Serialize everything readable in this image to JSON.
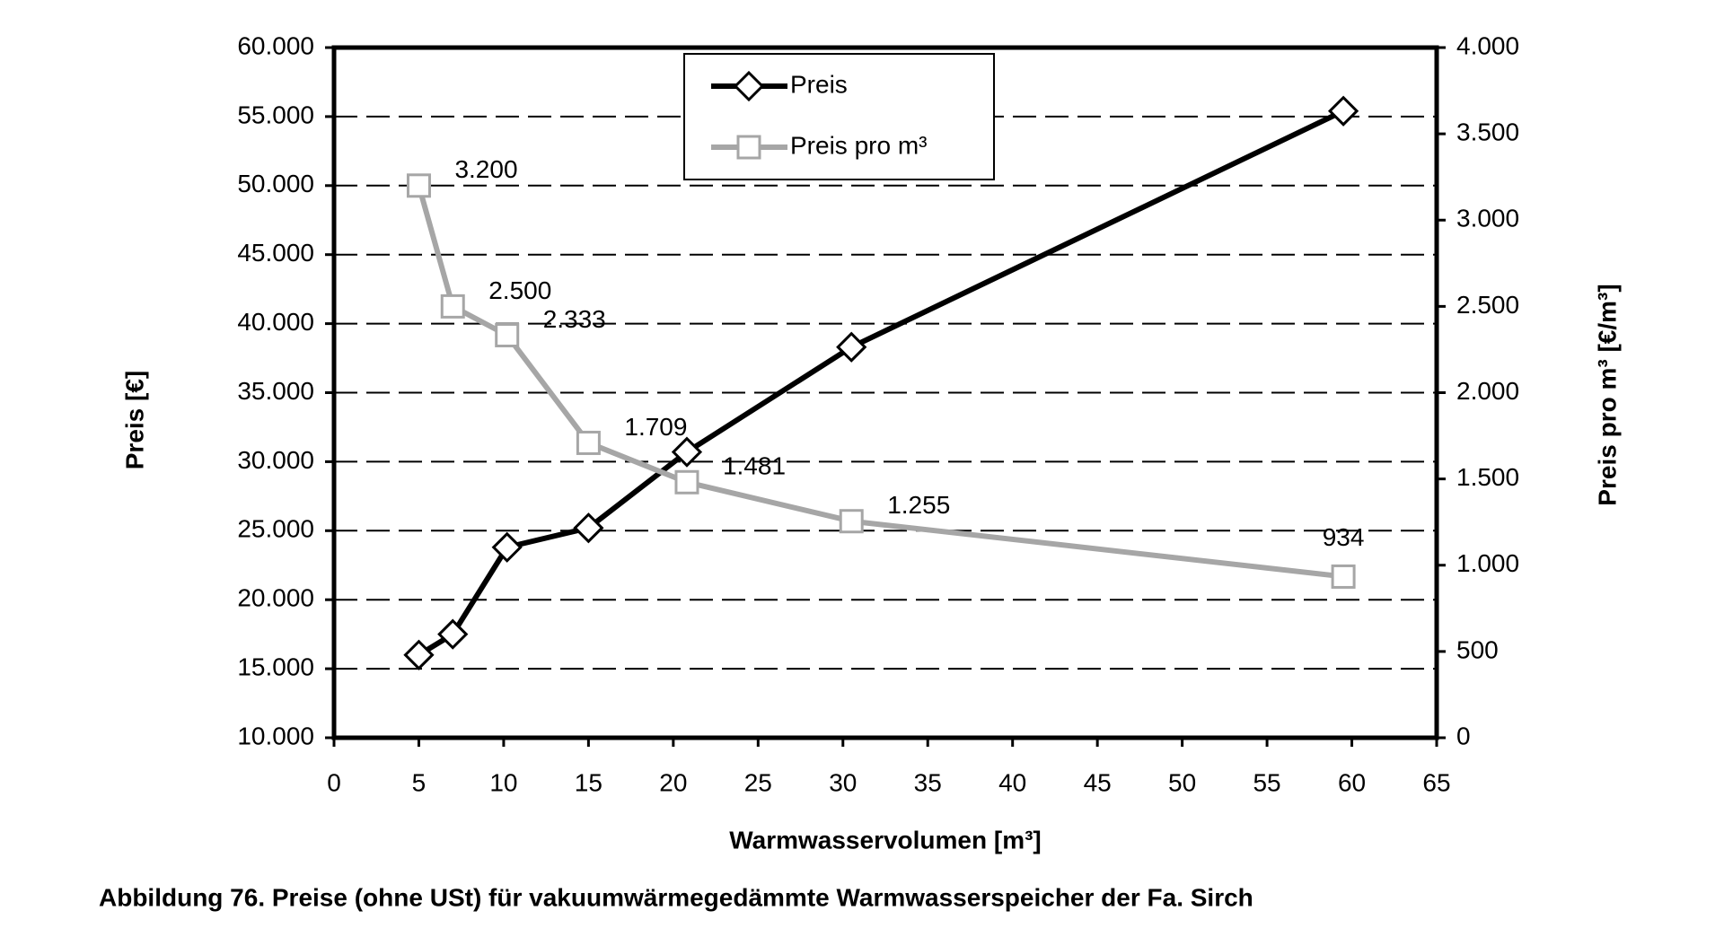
{
  "chart_data": {
    "type": "line",
    "xlabel": "Warmwasservolumen [m³]",
    "ylabel": "Preis [€]",
    "y2label": "Preis pro m³ [€/m³]",
    "caption": "Abbildung 76. Preise (ohne USt) für vakuumwärmegedämmte Warmwasserspeicher der Fa. Sirch",
    "x": [
      5,
      7,
      10.2,
      15,
      20.8,
      30.5,
      59.5
    ],
    "series": [
      {
        "name": "Preis",
        "color": "#000000",
        "marker": "diamond",
        "values": [
          16000,
          17500,
          23800,
          25200,
          30700,
          38300,
          55400
        ]
      },
      {
        "name": "Preis pro m³",
        "color": "#a6a6a6",
        "marker": "square",
        "axis": "y2",
        "values": [
          3200,
          2500,
          2333,
          1709,
          1481,
          1255,
          934
        ],
        "value_labels": [
          "3.200",
          "2.500",
          "2.333",
          "1.709",
          "1.481",
          "1.255",
          "934"
        ]
      }
    ],
    "xlim": [
      0,
      65
    ],
    "xticks": [
      0,
      5,
      10,
      15,
      20,
      25,
      30,
      35,
      40,
      45,
      50,
      55,
      60,
      65
    ],
    "ylim": [
      10000,
      60000
    ],
    "yticks": [
      {
        "value": 10000,
        "label": "10.000"
      },
      {
        "value": 15000,
        "label": "15.000"
      },
      {
        "value": 20000,
        "label": "20.000"
      },
      {
        "value": 25000,
        "label": "25.000"
      },
      {
        "value": 30000,
        "label": "30.000"
      },
      {
        "value": 35000,
        "label": "35.000"
      },
      {
        "value": 40000,
        "label": "40.000"
      },
      {
        "value": 45000,
        "label": "45.000"
      },
      {
        "value": 50000,
        "label": "50.000"
      },
      {
        "value": 55000,
        "label": "55.000"
      },
      {
        "value": 60000,
        "label": "60.000"
      }
    ],
    "y2lim": [
      0,
      4000
    ],
    "y2ticks": [
      0,
      500,
      {
        "value": 1000,
        "label": "1.000"
      },
      {
        "value": 1500,
        "label": "1.500"
      },
      {
        "value": 2000,
        "label": "2.000"
      },
      {
        "value": 2500,
        "label": "2.500"
      },
      {
        "value": 3000,
        "label": "3.000"
      },
      {
        "value": 3500,
        "label": "3.500"
      },
      {
        "value": 4000,
        "label": "4.000"
      }
    ],
    "grid": true,
    "legend": "top-center"
  }
}
